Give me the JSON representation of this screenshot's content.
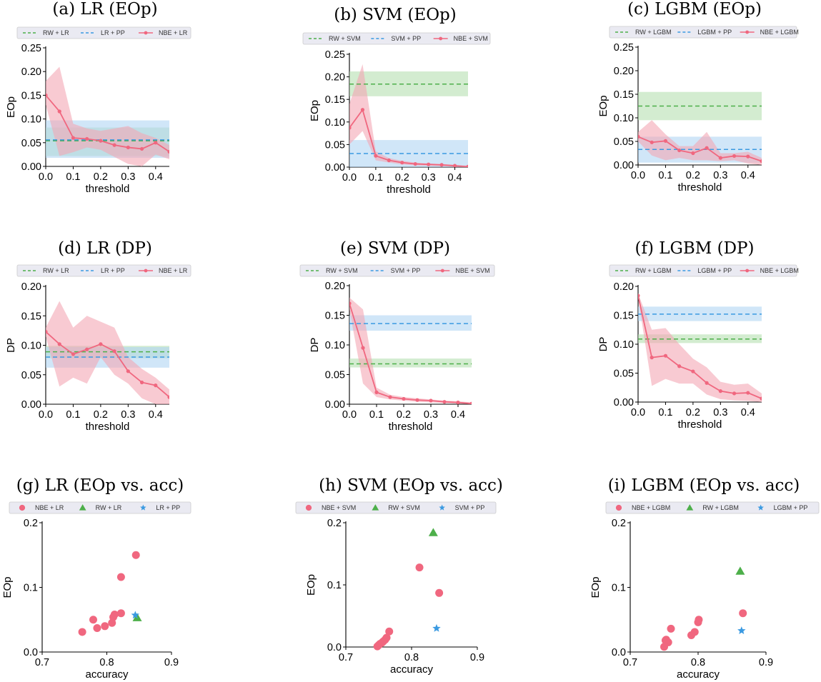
{
  "chart_data": [
    {
      "id": "a",
      "type": "line",
      "title": "(a) LR (EOp)",
      "xlabel": "threshold",
      "ylabel": "EOp",
      "xlim": [
        0,
        0.45
      ],
      "ylim": [
        0,
        0.25
      ],
      "xticks": [
        0.0,
        0.1,
        0.2,
        0.3,
        0.4
      ],
      "xticklabels": [
        "0.0",
        "0.1",
        "0.2",
        "0.3",
        "0.4"
      ],
      "yticks": [
        0,
        0.05,
        0.1,
        0.15,
        0.2,
        0.25
      ],
      "yticklabels": [
        "0.00",
        "0.05",
        "0.10",
        "0.15",
        "0.20",
        "0.25"
      ],
      "legend": [
        "RW + LR",
        "LR + PP",
        "NBE + LR"
      ],
      "series": [
        {
          "name": "NBE + LR",
          "x": [
            0,
            0.05,
            0.1,
            0.15,
            0.2,
            0.25,
            0.3,
            0.35,
            0.4,
            0.45
          ],
          "y": [
            0.15,
            0.116,
            0.06,
            0.058,
            0.054,
            0.045,
            0.04,
            0.037,
            0.05,
            0.031
          ],
          "upper": [
            0.18,
            0.21,
            0.09,
            0.08,
            0.075,
            0.08,
            0.085,
            0.07,
            0.06,
            0.045
          ],
          "lower": [
            0.13,
            0.022,
            0.03,
            0.04,
            0.035,
            0.02,
            0.005,
            0.0,
            0.025,
            0.015
          ]
        }
      ],
      "hlines": [
        {
          "name": "RW + LR",
          "y": 0.054,
          "lo": 0.022,
          "hi": 0.082,
          "color": "#4daf4a"
        },
        {
          "name": "LR + PP",
          "y": 0.056,
          "lo": 0.018,
          "hi": 0.097,
          "color": "#3b9ae1"
        }
      ]
    },
    {
      "id": "b",
      "type": "line",
      "title": "(b) SVM (EOp)",
      "xlabel": "threshold",
      "ylabel": "EOp",
      "xlim": [
        0,
        0.45
      ],
      "ylim": [
        0,
        0.25
      ],
      "xticks": [
        0.0,
        0.1,
        0.2,
        0.3,
        0.4
      ],
      "xticklabels": [
        "0.0",
        "0.1",
        "0.2",
        "0.3",
        "0.4"
      ],
      "yticks": [
        0,
        0.05,
        0.1,
        0.15,
        0.2,
        0.25
      ],
      "yticklabels": [
        "0.00",
        "0.05",
        "0.10",
        "0.15",
        "0.20",
        "0.25"
      ],
      "legend": [
        "RW + SVM",
        "SVM + PP",
        "NBE + SVM"
      ],
      "series": [
        {
          "name": "NBE + SVM",
          "x": [
            0,
            0.05,
            0.1,
            0.15,
            0.2,
            0.25,
            0.3,
            0.35,
            0.4,
            0.45
          ],
          "y": [
            0.087,
            0.127,
            0.025,
            0.015,
            0.01,
            0.007,
            0.006,
            0.005,
            0.003,
            0.001
          ],
          "upper": [
            0.14,
            0.228,
            0.035,
            0.02,
            0.014,
            0.01,
            0.008,
            0.007,
            0.005,
            0.003
          ],
          "lower": [
            0.05,
            0.08,
            0.015,
            0.01,
            0.006,
            0.004,
            0.003,
            0.002,
            0.001,
            0.0
          ]
        }
      ],
      "hlines": [
        {
          "name": "RW + SVM",
          "y": 0.184,
          "lo": 0.157,
          "hi": 0.212,
          "color": "#4daf4a"
        },
        {
          "name": "SVM + PP",
          "y": 0.03,
          "lo": 0.0,
          "hi": 0.06,
          "color": "#3b9ae1"
        }
      ]
    },
    {
      "id": "c",
      "type": "line",
      "title": "(c) LGBM (EOp)",
      "xlabel": "threshold",
      "ylabel": "EOp",
      "xlim": [
        0,
        0.45
      ],
      "ylim": [
        0,
        0.25
      ],
      "xticks": [
        0.0,
        0.1,
        0.2,
        0.3,
        0.4
      ],
      "xticklabels": [
        "0.0",
        "0.1",
        "0.2",
        "0.3",
        "0.4"
      ],
      "yticks": [
        0,
        0.05,
        0.1,
        0.15,
        0.2,
        0.25
      ],
      "yticklabels": [
        "0.00",
        "0.05",
        "0.10",
        "0.15",
        "0.20",
        "0.25"
      ],
      "legend": [
        "RW + LGBM",
        "LGBM + PP",
        "NBE + LGBM"
      ],
      "series": [
        {
          "name": "NBE + LGBM",
          "x": [
            0,
            0.05,
            0.1,
            0.15,
            0.2,
            0.25,
            0.3,
            0.35,
            0.4,
            0.45
          ],
          "y": [
            0.06,
            0.048,
            0.051,
            0.031,
            0.025,
            0.036,
            0.015,
            0.019,
            0.018,
            0.008
          ],
          "upper": [
            0.07,
            0.095,
            0.065,
            0.04,
            0.04,
            0.07,
            0.025,
            0.025,
            0.028,
            0.015
          ],
          "lower": [
            0.05,
            0.02,
            0.01,
            0.015,
            0.01,
            0.01,
            0.008,
            0.01,
            0.003,
            0.0
          ]
        }
      ],
      "hlines": [
        {
          "name": "RW + LGBM",
          "y": 0.125,
          "lo": 0.095,
          "hi": 0.155,
          "color": "#4daf4a"
        },
        {
          "name": "LGBM + PP",
          "y": 0.033,
          "lo": 0.005,
          "hi": 0.06,
          "color": "#3b9ae1"
        }
      ]
    },
    {
      "id": "d",
      "type": "line",
      "title": "(d) LR (DP)",
      "xlabel": "threshold",
      "ylabel": "DP",
      "xlim": [
        0,
        0.45
      ],
      "ylim": [
        0,
        0.2
      ],
      "xticks": [
        0.0,
        0.1,
        0.2,
        0.3,
        0.4
      ],
      "xticklabels": [
        "0.0",
        "0.1",
        "0.2",
        "0.3",
        "0.4"
      ],
      "yticks": [
        0,
        0.05,
        0.1,
        0.15,
        0.2
      ],
      "yticklabels": [
        "0.00",
        "0.05",
        "0.10",
        "0.15",
        "0.20"
      ],
      "legend": [
        "RW + LR",
        "LR + PP",
        "NBE + LR"
      ],
      "series": [
        {
          "name": "NBE + LR",
          "x": [
            0,
            0.05,
            0.1,
            0.15,
            0.2,
            0.25,
            0.3,
            0.35,
            0.4,
            0.45
          ],
          "y": [
            0.123,
            0.102,
            0.085,
            0.093,
            0.102,
            0.09,
            0.056,
            0.037,
            0.032,
            0.012
          ],
          "upper": [
            0.13,
            0.175,
            0.13,
            0.15,
            0.14,
            0.13,
            0.08,
            0.06,
            0.045,
            0.025
          ],
          "lower": [
            0.115,
            0.03,
            0.045,
            0.035,
            0.08,
            0.05,
            0.035,
            0.01,
            0.0,
            0.0
          ]
        }
      ],
      "hlines": [
        {
          "name": "RW + LR",
          "y": 0.089,
          "lo": 0.078,
          "hi": 0.099,
          "color": "#4daf4a"
        },
        {
          "name": "LR + PP",
          "y": 0.08,
          "lo": 0.062,
          "hi": 0.097,
          "color": "#3b9ae1"
        }
      ]
    },
    {
      "id": "e",
      "type": "line",
      "title": "(e) SVM (DP)",
      "xlabel": "threshold",
      "ylabel": "DP",
      "xlim": [
        0,
        0.45
      ],
      "ylim": [
        0,
        0.2
      ],
      "xticks": [
        0.0,
        0.1,
        0.2,
        0.3,
        0.4
      ],
      "xticklabels": [
        "0.0",
        "0.1",
        "0.2",
        "0.3",
        "0.4"
      ],
      "yticks": [
        0,
        0.05,
        0.1,
        0.15,
        0.2
      ],
      "yticklabels": [
        "0.00",
        "0.05",
        "0.10",
        "0.15",
        "0.20"
      ],
      "legend": [
        "RW + SVM",
        "SVM + PP",
        "NBE + SVM"
      ],
      "series": [
        {
          "name": "NBE + SVM",
          "x": [
            0,
            0.05,
            0.1,
            0.15,
            0.2,
            0.25,
            0.3,
            0.35,
            0.4,
            0.45
          ],
          "y": [
            0.17,
            0.095,
            0.02,
            0.012,
            0.009,
            0.007,
            0.006,
            0.004,
            0.003,
            0.001
          ],
          "upper": [
            0.18,
            0.16,
            0.028,
            0.016,
            0.012,
            0.01,
            0.008,
            0.006,
            0.005,
            0.003
          ],
          "lower": [
            0.16,
            0.035,
            0.012,
            0.008,
            0.006,
            0.004,
            0.003,
            0.002,
            0.001,
            0.0
          ]
        }
      ],
      "hlines": [
        {
          "name": "RW + SVM",
          "y": 0.068,
          "lo": 0.062,
          "hi": 0.077,
          "color": "#4daf4a"
        },
        {
          "name": "SVM + PP",
          "y": 0.136,
          "lo": 0.124,
          "hi": 0.15,
          "color": "#3b9ae1"
        }
      ]
    },
    {
      "id": "f",
      "type": "line",
      "title": "(f) LGBM (DP)",
      "xlabel": "threshold",
      "ylabel": "DP",
      "xlim": [
        0,
        0.45
      ],
      "ylim": [
        0,
        0.2
      ],
      "xticks": [
        0.0,
        0.1,
        0.2,
        0.3,
        0.4
      ],
      "xticklabels": [
        "0.0",
        "0.1",
        "0.2",
        "0.3",
        "0.4"
      ],
      "yticks": [
        0,
        0.05,
        0.1,
        0.15,
        0.2
      ],
      "yticklabels": [
        "0.00",
        "0.05",
        "0.10",
        "0.15",
        "0.20"
      ],
      "legend": [
        "RW + LGBM",
        "LGBM + PP",
        "NBE + LGBM"
      ],
      "series": [
        {
          "name": "NBE + LGBM",
          "x": [
            0,
            0.05,
            0.1,
            0.15,
            0.2,
            0.25,
            0.3,
            0.35,
            0.4,
            0.45
          ],
          "y": [
            0.184,
            0.077,
            0.08,
            0.062,
            0.053,
            0.033,
            0.019,
            0.015,
            0.016,
            0.006
          ],
          "upper": [
            0.188,
            0.125,
            0.128,
            0.1,
            0.075,
            0.06,
            0.035,
            0.03,
            0.032,
            0.015
          ],
          "lower": [
            0.18,
            0.028,
            0.04,
            0.032,
            0.032,
            0.013,
            0.005,
            0.003,
            0.002,
            0.0
          ]
        }
      ],
      "hlines": [
        {
          "name": "RW + LGBM",
          "y": 0.109,
          "lo": 0.102,
          "hi": 0.117,
          "color": "#4daf4a"
        },
        {
          "name": "LGBM + PP",
          "y": 0.152,
          "lo": 0.14,
          "hi": 0.165,
          "color": "#3b9ae1"
        }
      ]
    },
    {
      "id": "g",
      "type": "scatter",
      "title": "(g) LR (EOp vs. acc)",
      "xlabel": "accuracy",
      "ylabel": "EOp",
      "xlim": [
        0.7,
        0.9
      ],
      "ylim": [
        0,
        0.2
      ],
      "xticks": [
        0.7,
        0.8,
        0.9
      ],
      "xticklabels": [
        "0.7",
        "0.8",
        "0.9"
      ],
      "yticks": [
        0,
        0.1,
        0.2
      ],
      "yticklabels": [
        "0.0",
        "0.1",
        "0.2"
      ],
      "legend": [
        "NBE + LR",
        "RW + LR",
        "LR + PP"
      ],
      "points": [
        {
          "name": "NBE + LR",
          "marker": "circle",
          "x": [
            0.845,
            0.822,
            0.822,
            0.812,
            0.81,
            0.808,
            0.779,
            0.797,
            0.785,
            0.762
          ],
          "y": [
            0.15,
            0.116,
            0.06,
            0.058,
            0.054,
            0.045,
            0.05,
            0.04,
            0.037,
            0.031
          ]
        },
        {
          "name": "RW + LR",
          "marker": "triangle",
          "x": [
            0.847
          ],
          "y": [
            0.053
          ]
        },
        {
          "name": "LR + PP",
          "marker": "star",
          "x": [
            0.844
          ],
          "y": [
            0.057
          ]
        }
      ]
    },
    {
      "id": "h",
      "type": "scatter",
      "title": "(h) SVM (EOp vs. acc)",
      "xlabel": "accuracy",
      "ylabel": "EOp",
      "xlim": [
        0.7,
        0.9
      ],
      "ylim": [
        0,
        0.2
      ],
      "xticks": [
        0.7,
        0.8,
        0.9
      ],
      "xticklabels": [
        "0.7",
        "0.8",
        "0.9"
      ],
      "yticks": [
        0,
        0.1,
        0.2
      ],
      "yticklabels": [
        "0.0",
        "0.1",
        "0.2"
      ],
      "legend": [
        "NBE + SVM",
        "RW + SVM",
        "SVM + PP"
      ],
      "points": [
        {
          "name": "NBE + SVM",
          "marker": "circle",
          "x": [
            0.812,
            0.842,
            0.766,
            0.762,
            0.76,
            0.757,
            0.755,
            0.752,
            0.75,
            0.748
          ],
          "y": [
            0.128,
            0.087,
            0.025,
            0.015,
            0.012,
            0.009,
            0.007,
            0.005,
            0.003,
            0.001
          ]
        },
        {
          "name": "RW + SVM",
          "marker": "triangle",
          "x": [
            0.833
          ],
          "y": [
            0.184
          ]
        },
        {
          "name": "SVM + PP",
          "marker": "star",
          "x": [
            0.838
          ],
          "y": [
            0.03
          ]
        }
      ]
    },
    {
      "id": "i",
      "type": "scatter",
      "title": "(i) LGBM (EOp vs. acc)",
      "xlabel": "accuracy",
      "ylabel": "EOp",
      "xlim": [
        0.7,
        0.9
      ],
      "ylim": [
        0,
        0.2
      ],
      "xticks": [
        0.7,
        0.8,
        0.9
      ],
      "xticklabels": [
        "0.7",
        "0.8",
        "0.9"
      ],
      "yticks": [
        0,
        0.1,
        0.2
      ],
      "yticklabels": [
        "0.0",
        "0.1",
        "0.2"
      ],
      "legend": [
        "NBE + LGBM",
        "RW + LGBM",
        "LGBM + PP"
      ],
      "points": [
        {
          "name": "NBE + LGBM",
          "marker": "circle",
          "x": [
            0.866,
            0.801,
            0.8,
            0.76,
            0.753,
            0.795,
            0.79,
            0.756,
            0.752,
            0.75
          ],
          "y": [
            0.06,
            0.05,
            0.046,
            0.036,
            0.019,
            0.031,
            0.026,
            0.015,
            0.018,
            0.008
          ]
        },
        {
          "name": "RW + LGBM",
          "marker": "triangle",
          "x": [
            0.862
          ],
          "y": [
            0.125
          ]
        },
        {
          "name": "LGBM + PP",
          "marker": "star",
          "x": [
            0.864
          ],
          "y": [
            0.033
          ]
        }
      ]
    }
  ],
  "colors": {
    "nbe": "#f0677f",
    "nbe_band": "#f4a6b4",
    "rw": "#4daf4a",
    "rw_band": "#b5dfb0",
    "pp": "#3b9ae1",
    "pp_band": "#b0d6f3"
  }
}
